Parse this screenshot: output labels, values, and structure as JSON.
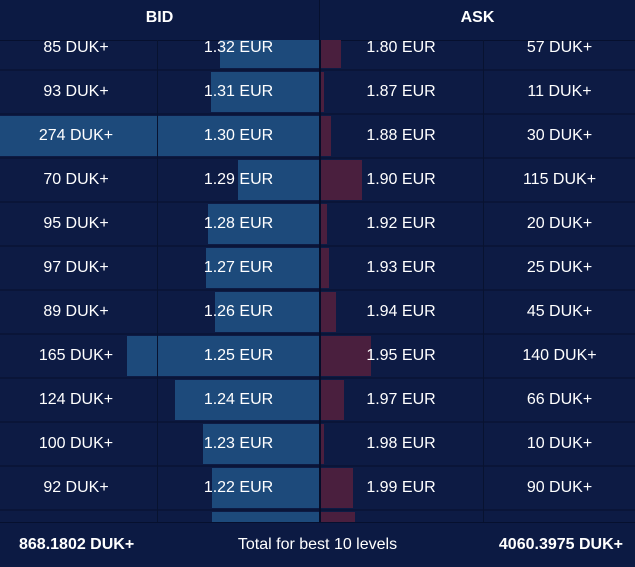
{
  "header": {
    "bid_label": "BID",
    "ask_label": "ASK"
  },
  "colors": {
    "background": "#0d1b44",
    "bid_bar": "#1d4a7b",
    "ask_bar": "#4a1f3e"
  },
  "rows": [
    {
      "bid_qty": "85 DUK+",
      "bid_price": "1.32 EUR",
      "ask_price": "1.80 EUR",
      "ask_qty": "57 DUK+",
      "bid_depth": 85,
      "ask_depth": 57
    },
    {
      "bid_qty": "93 DUK+",
      "bid_price": "1.31 EUR",
      "ask_price": "1.87 EUR",
      "ask_qty": "11 DUK+",
      "bid_depth": 93,
      "ask_depth": 11
    },
    {
      "bid_qty": "274 DUK+",
      "bid_price": "1.30 EUR",
      "ask_price": "1.88 EUR",
      "ask_qty": "30 DUK+",
      "bid_depth": 274,
      "ask_depth": 30
    },
    {
      "bid_qty": "70 DUK+",
      "bid_price": "1.29 EUR",
      "ask_price": "1.90 EUR",
      "ask_qty": "115 DUK+",
      "bid_depth": 70,
      "ask_depth": 115
    },
    {
      "bid_qty": "95 DUK+",
      "bid_price": "1.28 EUR",
      "ask_price": "1.92 EUR",
      "ask_qty": "20 DUK+",
      "bid_depth": 95,
      "ask_depth": 20
    },
    {
      "bid_qty": "97 DUK+",
      "bid_price": "1.27 EUR",
      "ask_price": "1.93 EUR",
      "ask_qty": "25 DUK+",
      "bid_depth": 97,
      "ask_depth": 25
    },
    {
      "bid_qty": "89 DUK+",
      "bid_price": "1.26 EUR",
      "ask_price": "1.94 EUR",
      "ask_qty": "45 DUK+",
      "bid_depth": 89,
      "ask_depth": 45
    },
    {
      "bid_qty": "165 DUK+",
      "bid_price": "1.25 EUR",
      "ask_price": "1.95 EUR",
      "ask_qty": "140 DUK+",
      "bid_depth": 165,
      "ask_depth": 140
    },
    {
      "bid_qty": "124 DUK+",
      "bid_price": "1.24 EUR",
      "ask_price": "1.97 EUR",
      "ask_qty": "66 DUK+",
      "bid_depth": 124,
      "ask_depth": 66
    },
    {
      "bid_qty": "100 DUK+",
      "bid_price": "1.23 EUR",
      "ask_price": "1.98 EUR",
      "ask_qty": "10 DUK+",
      "bid_depth": 100,
      "ask_depth": 10
    },
    {
      "bid_qty": "92 DUK+",
      "bid_price": "1.22 EUR",
      "ask_price": "1.99 EUR",
      "ask_qty": "90 DUK+",
      "bid_depth": 92,
      "ask_depth": 90
    },
    {
      "bid_qty": "",
      "bid_price": "",
      "ask_price": "",
      "ask_qty": "",
      "bid_depth": 92,
      "ask_depth": 95
    }
  ],
  "footer": {
    "bid_total": "868.1802 DUK+",
    "label": "Total for best 10 levels",
    "ask_total": "4060.3975 DUK+"
  }
}
